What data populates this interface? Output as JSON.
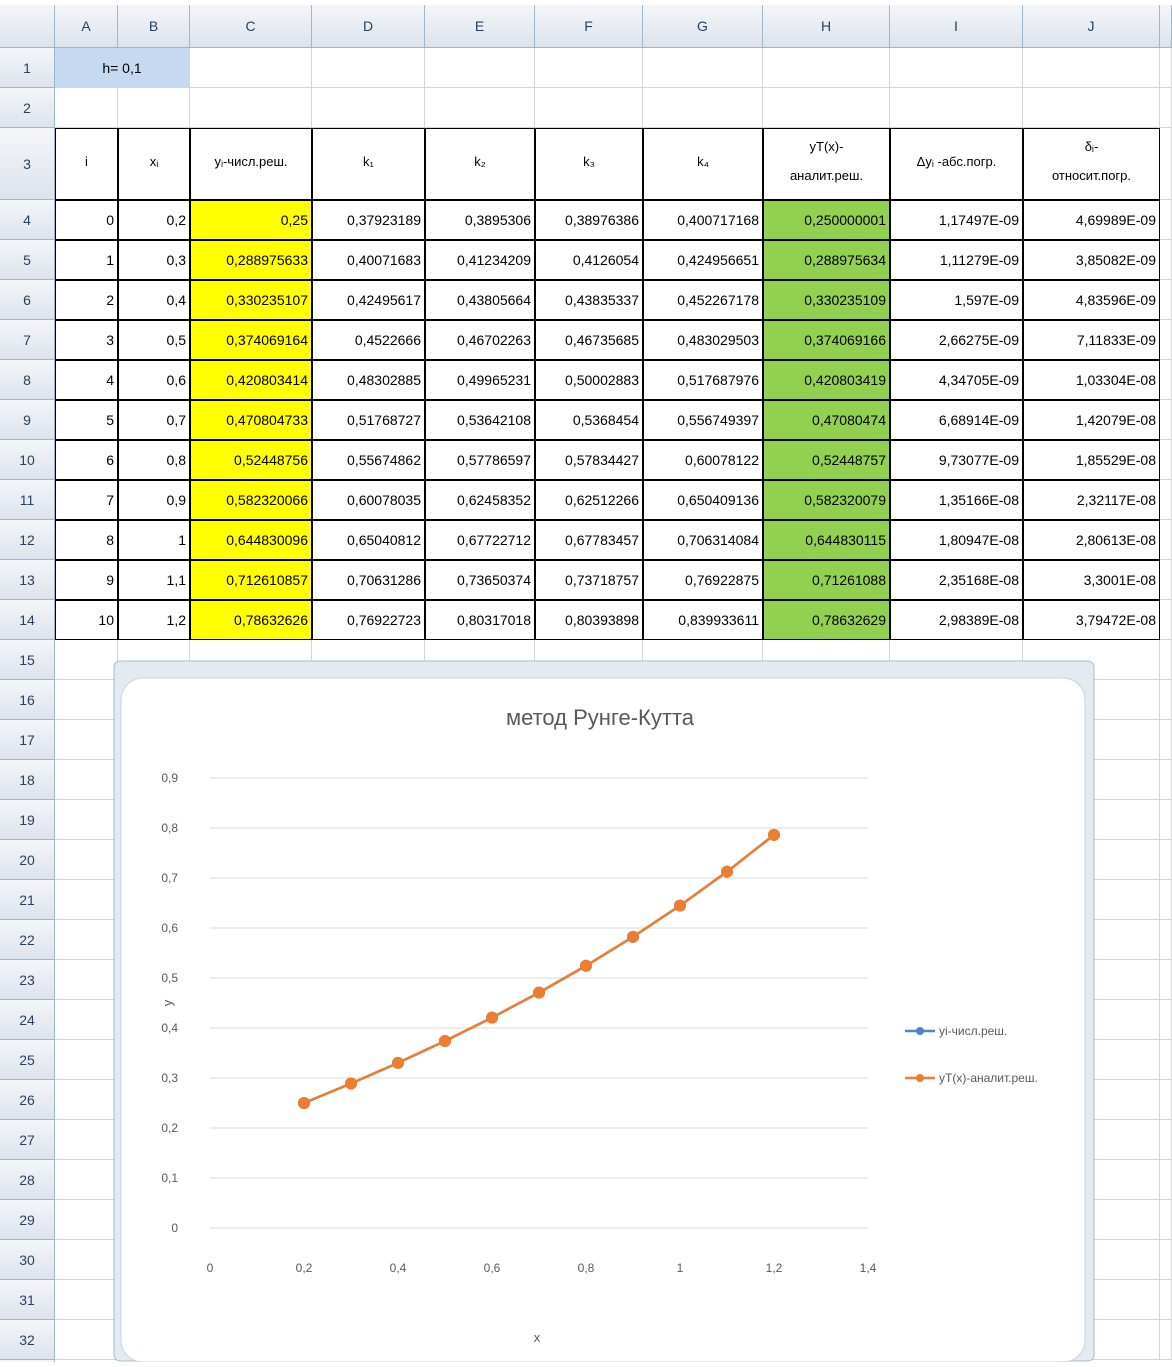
{
  "sheet": {
    "columns": [
      "A",
      "B",
      "C",
      "D",
      "E",
      "F",
      "G",
      "H",
      "I",
      "J"
    ],
    "row_numbers": [
      1,
      2,
      3,
      4,
      5,
      6,
      7,
      8,
      9,
      10,
      11,
      12,
      13,
      14,
      15,
      16,
      17,
      18,
      19,
      20,
      21,
      22,
      23,
      24,
      25,
      26,
      27,
      28,
      29,
      30,
      31,
      32
    ],
    "h_cell": "h= 0,1",
    "header": [
      "i",
      "xᵢ",
      "yᵢ-числ.реш.",
      "k₁",
      "k₂",
      "k₃",
      "k₄",
      [
        "yT(x)-",
        "аналит.реш."
      ],
      "Δyᵢ -абс.погр.",
      [
        "δᵢ-",
        "относит.погр."
      ]
    ],
    "rows": [
      [
        "0",
        "0,2",
        "0,25",
        "0,37923189",
        "0,3895306",
        "0,38976386",
        "0,400717168",
        "0,250000001",
        "1,17497E-09",
        "4,69989E-09"
      ],
      [
        "1",
        "0,3",
        "0,288975633",
        "0,40071683",
        "0,41234209",
        "0,4126054",
        "0,424956651",
        "0,288975634",
        "1,11279E-09",
        "3,85082E-09"
      ],
      [
        "2",
        "0,4",
        "0,330235107",
        "0,42495617",
        "0,43805664",
        "0,43835337",
        "0,452267178",
        "0,330235109",
        "1,597E-09",
        "4,83596E-09"
      ],
      [
        "3",
        "0,5",
        "0,374069164",
        "0,4522666",
        "0,46702263",
        "0,46735685",
        "0,483029503",
        "0,374069166",
        "2,66275E-09",
        "7,11833E-09"
      ],
      [
        "4",
        "0,6",
        "0,420803414",
        "0,48302885",
        "0,49965231",
        "0,50002883",
        "0,517687976",
        "0,420803419",
        "4,34705E-09",
        "1,03304E-08"
      ],
      [
        "5",
        "0,7",
        "0,470804733",
        "0,51768727",
        "0,53642108",
        "0,5368454",
        "0,556749397",
        "0,47080474",
        "6,68914E-09",
        "1,42079E-08"
      ],
      [
        "6",
        "0,8",
        "0,52448756",
        "0,55674862",
        "0,57786597",
        "0,57834427",
        "0,60078122",
        "0,52448757",
        "9,73077E-09",
        "1,85529E-08"
      ],
      [
        "7",
        "0,9",
        "0,582320066",
        "0,60078035",
        "0,62458352",
        "0,62512266",
        "0,650409136",
        "0,582320079",
        "1,35166E-08",
        "2,32117E-08"
      ],
      [
        "8",
        "1",
        "0,644830096",
        "0,65040812",
        "0,67722712",
        "0,67783457",
        "0,706314084",
        "0,644830115",
        "1,80947E-08",
        "2,80613E-08"
      ],
      [
        "9",
        "1,1",
        "0,712610857",
        "0,70631286",
        "0,73650374",
        "0,73718757",
        "0,76922875",
        "0,71261088",
        "2,35168E-08",
        "3,3001E-08"
      ],
      [
        "10",
        "1,2",
        "0,78632626",
        "0,76922723",
        "0,80317018",
        "0,80393898",
        "0,839933611",
        "0,78632629",
        "2,98389E-08",
        "3,79472E-08"
      ]
    ]
  },
  "chart_data": {
    "type": "line",
    "title": "метод Рунге-Кутта",
    "x_label": "x",
    "y_label": "y",
    "x": [
      0.2,
      0.3,
      0.4,
      0.5,
      0.6,
      0.7,
      0.8,
      0.9,
      1,
      1.1,
      1.2
    ],
    "series": [
      {
        "name": "yi-числ.реш.",
        "color": "#4a86c8",
        "values": [
          0.25,
          0.288975633,
          0.330235107,
          0.374069164,
          0.420803414,
          0.470804733,
          0.52448756,
          0.582320066,
          0.644830096,
          0.712610857,
          0.78632626
        ]
      },
      {
        "name": "yT(x)-аналит.реш.",
        "color": "#ed7d31",
        "values": [
          0.250000001,
          0.288975634,
          0.330235109,
          0.374069166,
          0.420803419,
          0.47080474,
          0.52448757,
          0.582320079,
          0.644830115,
          0.71261088,
          0.78632629
        ]
      }
    ],
    "xlim": [
      0,
      1.4
    ],
    "xticks": [
      0,
      {
        "value": 0.2,
        "label": "0,2"
      },
      {
        "value": 0.4,
        "label": "0,4"
      },
      {
        "value": 0.6,
        "label": "0,6"
      },
      {
        "value": 0.8,
        "label": "0,8"
      },
      1,
      {
        "value": 1.2,
        "label": "1,2"
      },
      {
        "value": 1.4,
        "label": "1,4"
      }
    ],
    "ylim": [
      0,
      0.9
    ],
    "yticks": [
      0,
      {
        "value": 0.1,
        "label": "0,1"
      },
      {
        "value": 0.2,
        "label": "0,2"
      },
      {
        "value": 0.3,
        "label": "0,3"
      },
      {
        "value": 0.4,
        "label": "0,4"
      },
      {
        "value": 0.5,
        "label": "0,5"
      },
      {
        "value": 0.6,
        "label": "0,6"
      },
      {
        "value": 0.7,
        "label": "0,7"
      },
      {
        "value": 0.8,
        "label": "0,8"
      },
      {
        "value": 0.9,
        "label": "0,9"
      }
    ],
    "grid": true,
    "legend": "right"
  }
}
